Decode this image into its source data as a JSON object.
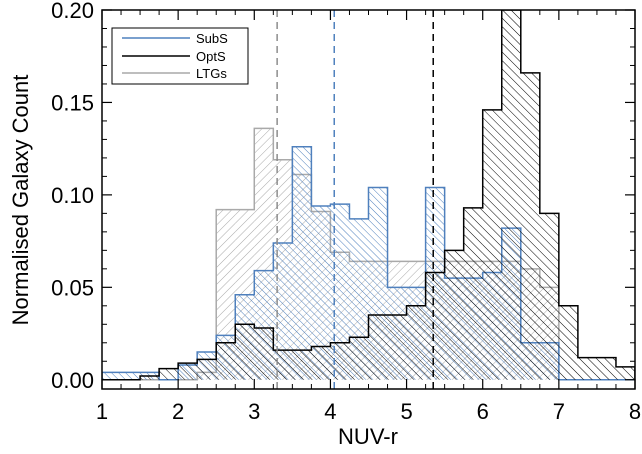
{
  "chart_data": {
    "type": "histogram",
    "title": "",
    "xlabel": "NUV-r",
    "ylabel": "Normalised Galaxy Count",
    "xlim": [
      1,
      8
    ],
    "ylim": [
      -0.005,
      0.2
    ],
    "xticks": [
      "1",
      "2",
      "3",
      "4",
      "5",
      "6",
      "7",
      "8"
    ],
    "yticks": [
      "0.00",
      "0.05",
      "0.10",
      "0.15",
      "0.20"
    ],
    "bin_width": 0.25,
    "grid": false,
    "legend_position": "top-left",
    "series": [
      {
        "name": "SubS",
        "color": "#4f80bd",
        "bin_edges_start": 1.0,
        "values": [
          0.004,
          0.004,
          0.004,
          0.0,
          0.008,
          0.015,
          0.024,
          0.046,
          0.059,
          0.074,
          0.126,
          0.094,
          0.095,
          0.087,
          0.104,
          0.05,
          0.05,
          0.104,
          0.055,
          0.055,
          0.058,
          0.082,
          0.02,
          0.02,
          0.0,
          0.0,
          0.0,
          0.0
        ],
        "median_line": 4.05
      },
      {
        "name": "OptS",
        "color": "#000000",
        "bin_edges_start": 1.0,
        "values": [
          0.0,
          0.0,
          0.002,
          0.006,
          0.009,
          0.011,
          0.02,
          0.03,
          0.028,
          0.016,
          0.016,
          0.018,
          0.02,
          0.023,
          0.035,
          0.035,
          0.04,
          0.058,
          0.07,
          0.093,
          0.146,
          0.2,
          0.166,
          0.09,
          0.04,
          0.012,
          0.012,
          0.007,
          0.0
        ],
        "median_line": 5.35
      },
      {
        "name": "LTGs",
        "color": "#a9a9a9",
        "bin_edges_start": 1.0,
        "values": [
          0.0,
          0.0,
          0.0,
          0.0,
          0.0,
          0.004,
          0.092,
          0.092,
          0.136,
          0.119,
          0.111,
          0.091,
          0.069,
          0.064,
          0.064,
          0.064,
          0.064,
          0.064,
          0.064,
          0.064,
          0.064,
          0.064,
          0.06,
          0.05,
          0.0,
          0.0,
          0.0,
          0.0,
          0.006
        ],
        "median_line": 3.3
      }
    ]
  }
}
